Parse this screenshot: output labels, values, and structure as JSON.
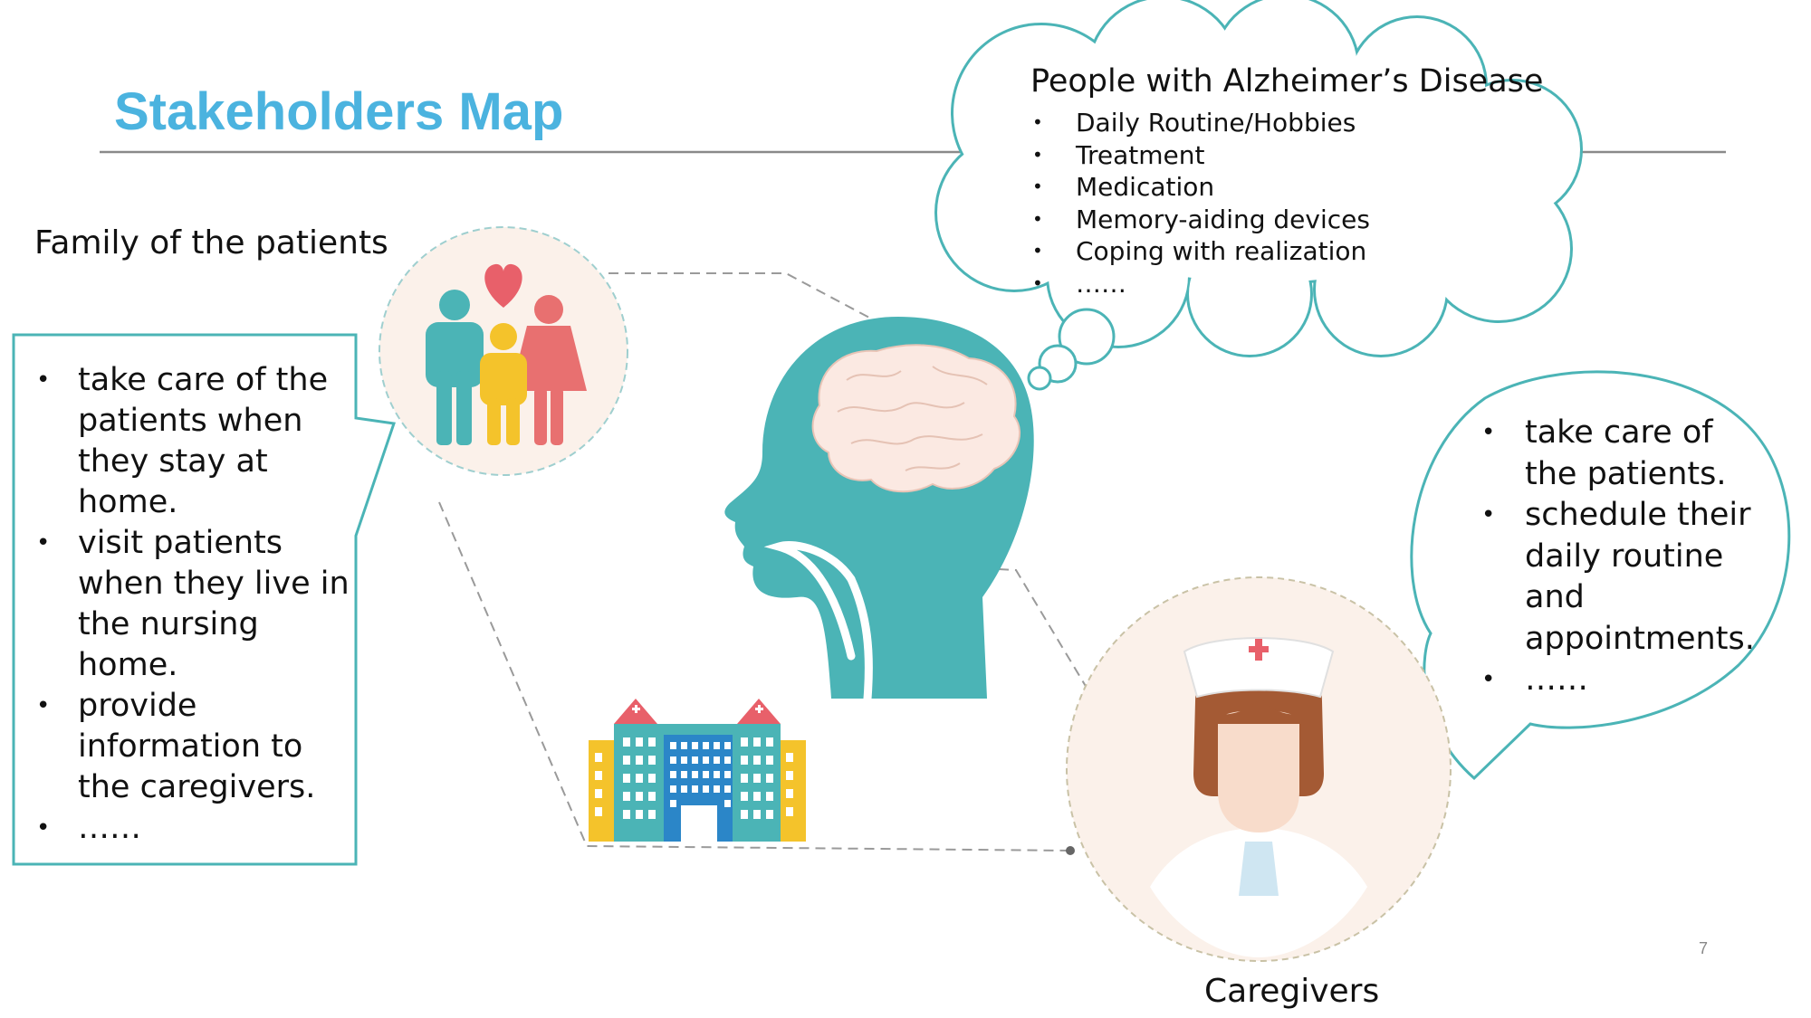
{
  "title": "Stakeholders Map",
  "family": {
    "label": "Family of the patients",
    "items": [
      "take care of the patients when they stay at home.",
      "visit patients when they live in the nursing home.",
      "provide information to the caregivers.",
      "……"
    ]
  },
  "patients": {
    "heading": "People with Alzheimer’s Disease",
    "items": [
      "Daily Routine/Hobbies",
      "Treatment",
      "Medication",
      "Memory-aiding devices",
      "Coping with realization",
      "……"
    ]
  },
  "caregivers": {
    "label": "Caregivers",
    "items": [
      "take care of the patients.",
      "schedule their daily routine and appointments.",
      "……"
    ]
  },
  "page_number": "7",
  "icons": {
    "family": "family-icon",
    "head": "head-brain-icon",
    "building": "hospital-building-icon",
    "nurse": "nurse-icon",
    "thought": "thought-cloud-icon"
  },
  "colors": {
    "title": "#4bb3df",
    "teal": "#4bb4b6",
    "red": "#e87070",
    "yellow": "#f4c32b",
    "blue": "#2b86c8",
    "circle_bg": "#fbf1ea"
  }
}
